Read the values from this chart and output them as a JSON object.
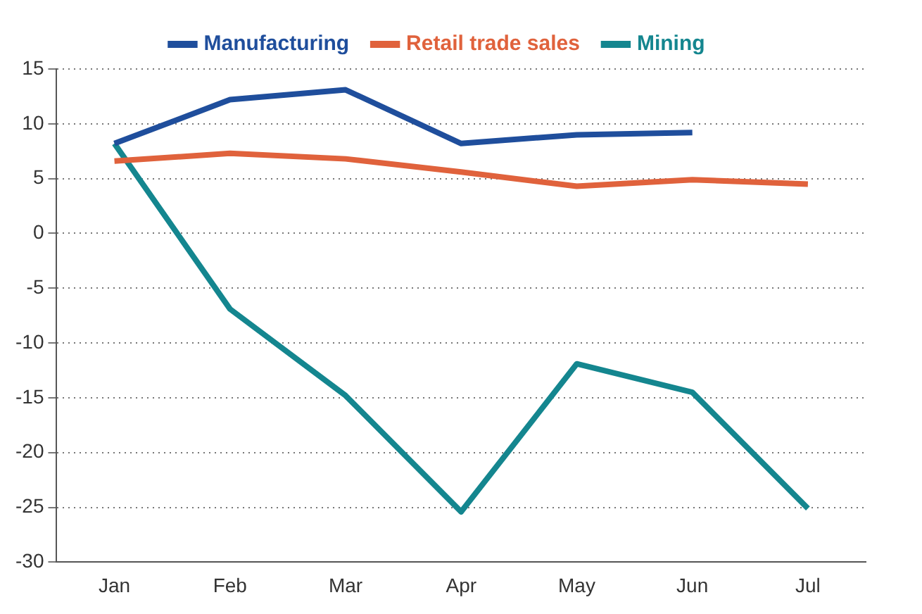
{
  "chart_data": {
    "type": "line",
    "categories": [
      "Jan",
      "Feb",
      "Mar",
      "Apr",
      "May",
      "Jun",
      "Jul"
    ],
    "series": [
      {
        "name": "Manufacturing",
        "color": "#1f4e9c",
        "values": [
          8.2,
          12.2,
          13.1,
          8.2,
          9.0,
          9.2,
          null
        ]
      },
      {
        "name": "Retail trade sales",
        "color": "#e0623c",
        "values": [
          6.6,
          7.3,
          6.8,
          5.6,
          4.3,
          4.9,
          4.5
        ]
      },
      {
        "name": "Mining",
        "color": "#14868f",
        "values": [
          8.2,
          -6.9,
          -14.8,
          -25.4,
          -11.9,
          -14.5,
          -25.1
        ]
      }
    ],
    "ylim": [
      -30,
      15
    ],
    "yticks": [
      -30,
      -25,
      -20,
      -15,
      -10,
      -5,
      0,
      5,
      10,
      15
    ],
    "grid": "y",
    "legend": "top",
    "marker": "none",
    "line_style": "solid"
  }
}
